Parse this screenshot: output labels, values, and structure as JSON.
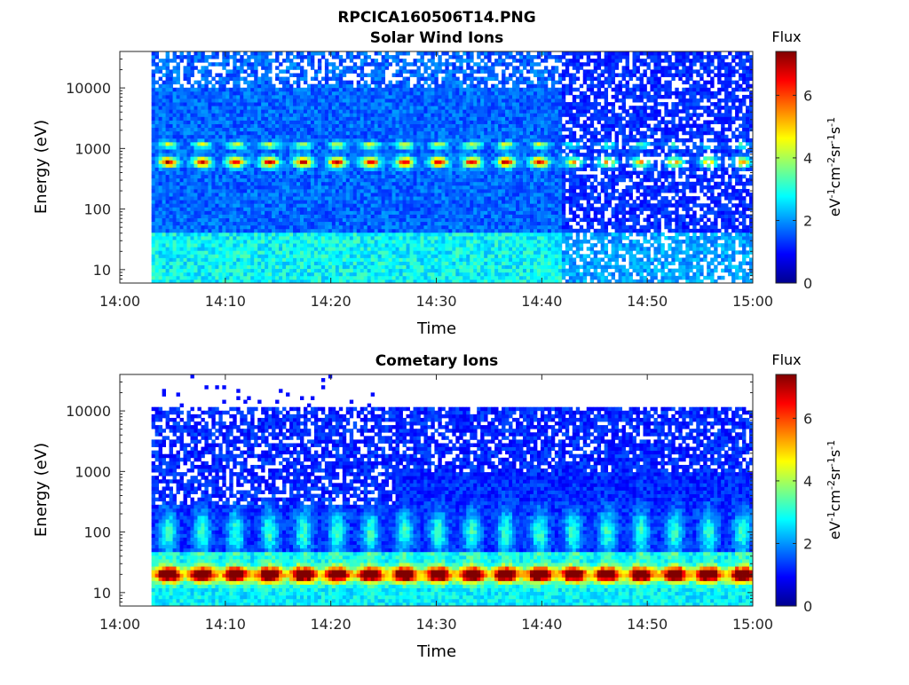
{
  "figure": {
    "title": "RPCICA160506T14.PNG"
  },
  "chart_data": [
    {
      "type": "heatmap",
      "title": "Solar Wind Ions",
      "xlabel": "Time",
      "ylabel": "Energy (eV)",
      "x_ticks": [
        "14:00",
        "14:10",
        "14:20",
        "14:30",
        "14:40",
        "14:50",
        "15:00"
      ],
      "x_range": [
        "14:00",
        "15:00"
      ],
      "data_x_range": [
        "14:03",
        "15:00"
      ],
      "y_ticks": [
        10,
        100,
        1000,
        10000
      ],
      "y_ticklabels": [
        "10",
        "100",
        "1000",
        "10000"
      ],
      "y_scale": "log",
      "y_range": [
        6,
        40000
      ],
      "colorbar": {
        "label": "Flux",
        "unit_label": "eV-1cm-2sr-1s-1",
        "ticks": [
          0,
          2,
          4,
          6
        ],
        "range": [
          0,
          7.4
        ]
      },
      "features": {
        "background_flux": 1.2,
        "low_energy_band_flux": 2.2,
        "peak_energy_eV": 600,
        "peak_flux": 5.3,
        "secondary_peak_energy_eV": 1150,
        "secondary_peak_flux": 3.0,
        "sweep_period_min": 3.2,
        "sparse_after": "14:42"
      }
    },
    {
      "type": "heatmap",
      "title": "Cometary Ions",
      "xlabel": "Time",
      "ylabel": "Energy (eV)",
      "x_ticks": [
        "14:00",
        "14:10",
        "14:20",
        "14:30",
        "14:40",
        "14:50",
        "15:00"
      ],
      "x_range": [
        "14:00",
        "15:00"
      ],
      "data_x_range": [
        "14:03",
        "15:00"
      ],
      "y_ticks": [
        10,
        100,
        1000,
        10000
      ],
      "y_ticklabels": [
        "10",
        "100",
        "1000",
        "10000"
      ],
      "y_scale": "log",
      "y_range": [
        6,
        40000
      ],
      "colorbar": {
        "label": "Flux",
        "unit_label": "eV-1cm-2sr-1s-1",
        "ticks": [
          0,
          2,
          4,
          6
        ],
        "range": [
          0,
          7.4
        ]
      },
      "features": {
        "background_flux": 0.8,
        "upper_energy_cutoff_eV": 11000,
        "peak_energy_eV": 20,
        "peak_flux": 6.3,
        "sweep_period_min": 3.2,
        "sparse_after": "14:26"
      }
    }
  ],
  "colormap": [
    "#00008f",
    "#0000ff",
    "#00ffff",
    "#ffff00",
    "#ff0000",
    "#800000"
  ]
}
